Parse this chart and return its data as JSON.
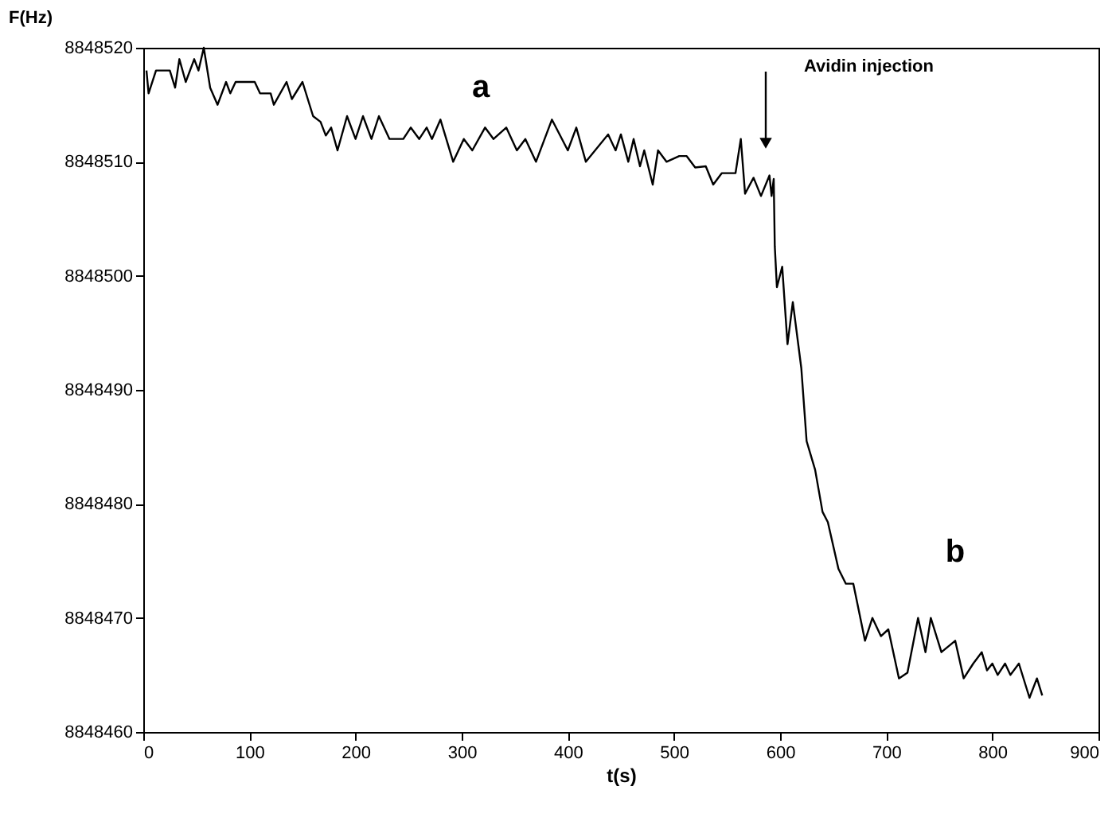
{
  "chart_data": {
    "type": "line",
    "xlabel": "t(s)",
    "ylabel": "F(Hz)",
    "xlim": [
      0,
      900
    ],
    "xticks": [
      0,
      100,
      200,
      300,
      400,
      500,
      600,
      700,
      800,
      900
    ],
    "ylim": [
      8848460,
      8848520
    ],
    "yticks": [
      8848460,
      8848470,
      8848480,
      8848490,
      8848500,
      8848510,
      8848520
    ],
    "grid": false,
    "line_style": "solid",
    "marker": "none",
    "series": [
      {
        "color": "#000000",
        "x": [
          3,
          5,
          12,
          25,
          30,
          34,
          40,
          48,
          52,
          57,
          63,
          70,
          78,
          82,
          87,
          105,
          110,
          120,
          123,
          135,
          140,
          150,
          160,
          167,
          172,
          177,
          183,
          192,
          200,
          207,
          215,
          222,
          232,
          245,
          252,
          260,
          267,
          272,
          280,
          292,
          302,
          310,
          322,
          330,
          342,
          352,
          360,
          370,
          385,
          400,
          408,
          417,
          438,
          445,
          450,
          457,
          462,
          468,
          472,
          480,
          485,
          493,
          505,
          512,
          520,
          530,
          537,
          545,
          558,
          563,
          567,
          575,
          582,
          590,
          592,
          594,
          595,
          597,
          602,
          607,
          612,
          620,
          625,
          633,
          640,
          645,
          655,
          662,
          669,
          680,
          687,
          695,
          702,
          712,
          720,
          730,
          737,
          742,
          752,
          765,
          773,
          782,
          790,
          795,
          800,
          805,
          812,
          817,
          825,
          835,
          842,
          847
        ],
        "values": [
          8848518,
          8848516,
          8848518,
          8848518,
          8848516.5,
          8848519,
          8848517,
          8848519,
          8848518,
          8848520,
          8848516.5,
          8848515,
          8848517,
          8848516,
          8848517,
          8848517,
          8848516,
          8848516,
          8848515,
          8848517,
          8848515.5,
          8848517,
          8848514,
          8848513.5,
          8848512.3,
          8848513,
          8848511,
          8848514,
          8848512,
          8848514,
          8848512,
          8848514,
          8848512,
          8848512,
          8848513,
          8848512,
          8848513,
          8848512,
          8848513.7,
          8848510,
          8848512,
          8848511,
          8848513,
          8848512,
          8848513,
          8848511,
          8848512,
          8848510,
          8848513.7,
          8848511,
          8848513,
          8848510,
          8848512.4,
          8848511,
          8848512.4,
          8848510,
          8848512,
          8848509.6,
          8848511,
          8848508,
          8848511,
          8848510,
          8848510.5,
          8848510.5,
          8848509.5,
          8848509.6,
          8848508,
          8848509,
          8848509,
          8848512,
          8848507.2,
          8848508.6,
          8848507,
          8848508.8,
          8848507,
          8848508.5,
          8848502.6,
          8848499,
          8848500.8,
          8848494,
          8848497.7,
          8848491.9,
          8848485.5,
          8848483,
          8848479.3,
          8848478.4,
          8848474.3,
          8848473,
          8848473,
          8848468,
          8848470,
          8848468.4,
          8848469,
          8848464.7,
          8848465.2,
          8848470,
          8848467,
          8848470,
          8848467,
          8848468,
          8848464.7,
          8848466,
          8848467,
          8848465.4,
          8848466,
          8848465,
          8848466,
          8848465,
          8848466,
          8848463,
          8848464.7,
          8848463.2
        ]
      }
    ],
    "annotations": [
      "a",
      "b",
      "Avidin injection"
    ]
  }
}
